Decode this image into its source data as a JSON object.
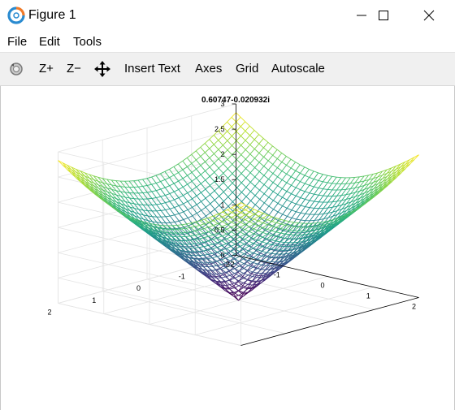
{
  "window": {
    "title": "Figure 1"
  },
  "menu": {
    "items": [
      "File",
      "Edit",
      "Tools"
    ]
  },
  "toolbar": {
    "zoom_in": "Z+",
    "zoom_out": "Z−",
    "insert_text": "Insert Text",
    "axes": "Axes",
    "grid": "Grid",
    "autoscale": "Autoscale"
  },
  "icons": {
    "app": "octave-logo-icon",
    "rotate": "rotate-icon",
    "pan": "pan-icon",
    "minimize": "minimize-icon",
    "maximize": "maximize-icon",
    "close": "close-icon"
  },
  "chart_data": {
    "type": "mesh",
    "title": "0.60747-0.020932i",
    "function": "sqrt(x^2 + y^2)",
    "x_range": [
      -2,
      2
    ],
    "y_range": [
      -2,
      2
    ],
    "zlim": [
      0,
      3
    ],
    "x_ticks": [
      "-2",
      "-1",
      "0",
      "1",
      "2"
    ],
    "y_ticks": [
      "-2",
      "-1",
      "0",
      "1",
      "2"
    ],
    "z_ticks": [
      "0",
      "0.5",
      "1",
      "1.5",
      "2",
      "2.5",
      "3"
    ],
    "grid_points": 41,
    "colormap": "viridis",
    "grid": true
  }
}
